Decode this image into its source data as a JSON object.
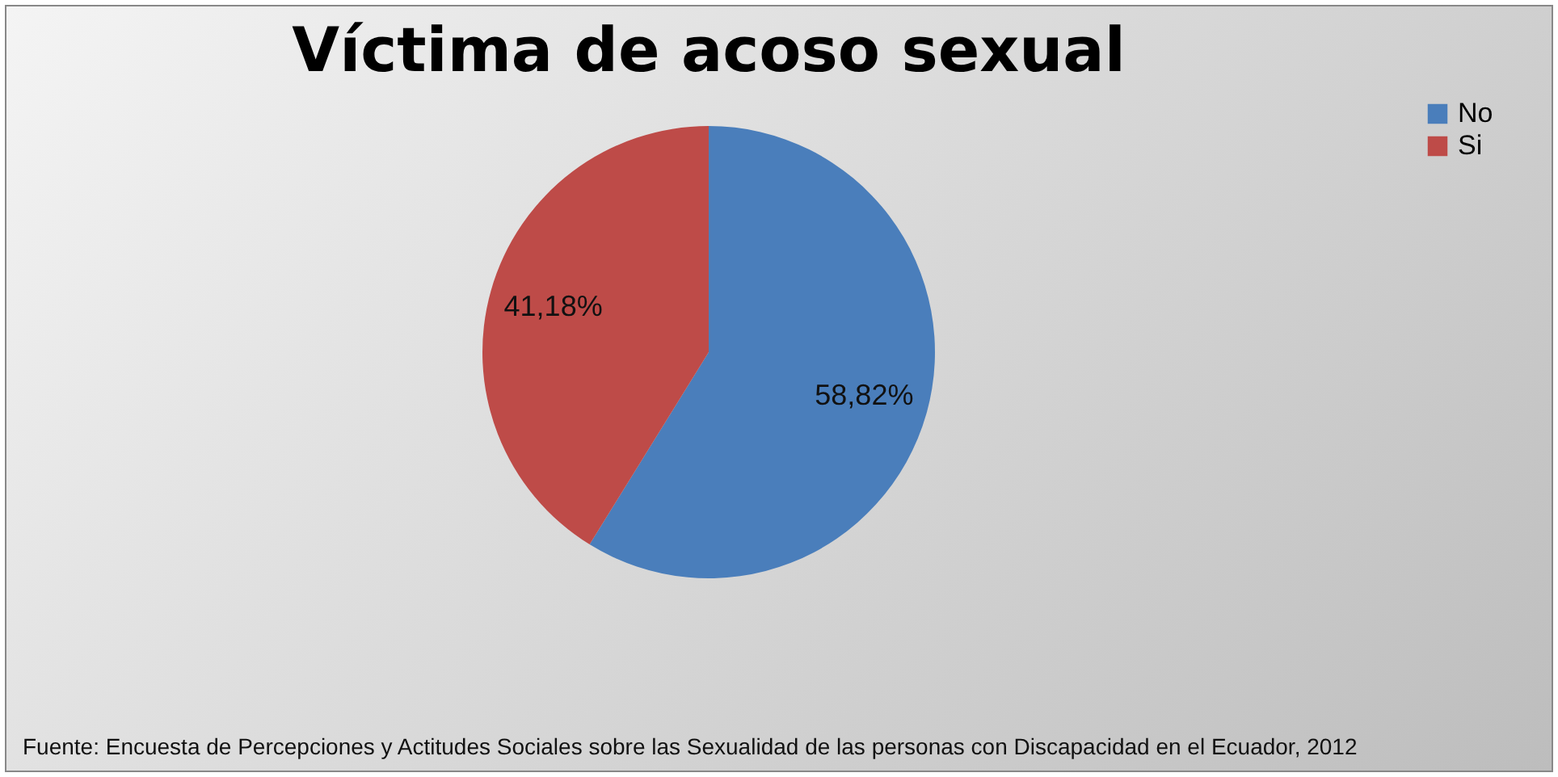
{
  "chart_data": {
    "type": "pie",
    "title": "Víctima de acoso sexual",
    "categories": [
      "No",
      "Si"
    ],
    "values": [
      58.82,
      41.18
    ],
    "colors": [
      "#4a7ebb",
      "#be4b48"
    ],
    "value_labels": [
      "58,82%",
      "41,18%"
    ],
    "legend": "right",
    "annotations": [
      "Fuente: Encuesta de Percepciones y Actitudes Sociales sobre las Sexualidad de las personas con Discapacidad en el Ecuador, 2012"
    ]
  }
}
